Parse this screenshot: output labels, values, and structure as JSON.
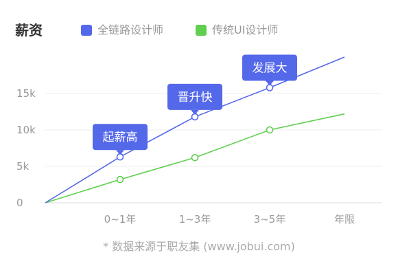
{
  "title": "薪资",
  "legend": [
    {
      "name": "全链路设计师",
      "color": "#5468ea"
    },
    {
      "name": "传统UI设计师",
      "color": "#5fcf4e"
    }
  ],
  "chart_data": {
    "type": "line",
    "categories": [
      "",
      "0~1年",
      "1~3年",
      "3~5年",
      "年限"
    ],
    "yticks": [
      "0",
      "5k",
      "10k",
      "15k"
    ],
    "ylim": [
      0,
      20000
    ],
    "grid": true,
    "series": [
      {
        "name": "全链路设计师",
        "color": "#5468ea",
        "values": [
          0,
          6300,
          11800,
          15800,
          20000
        ]
      },
      {
        "name": "传统UI设计师",
        "color": "#5fcf4e",
        "values": [
          0,
          3200,
          6200,
          10000,
          12200
        ]
      }
    ],
    "callouts": [
      {
        "text": "起薪高",
        "series": 0,
        "index": 1
      },
      {
        "text": "晋升快",
        "series": 0,
        "index": 2
      },
      {
        "text": "发展大",
        "series": 0,
        "index": 3
      }
    ]
  },
  "footnote": "* 数据来源于职友集 (www.jobui.com)"
}
